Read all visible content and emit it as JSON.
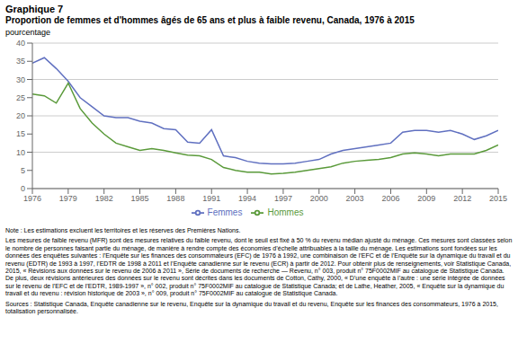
{
  "chart_data": {
    "type": "line",
    "title": "Graphique 7",
    "subtitle": "Proportion de femmes et d'hommes âgés de 65 ans et plus à faible revenu, Canada, 1976 à 2015",
    "y_label": "pourcentage",
    "x": [
      1976,
      1977,
      1978,
      1979,
      1980,
      1981,
      1982,
      1983,
      1984,
      1985,
      1986,
      1987,
      1988,
      1989,
      1990,
      1991,
      1992,
      1993,
      1994,
      1995,
      1996,
      1997,
      1998,
      1999,
      2000,
      2001,
      2002,
      2003,
      2004,
      2005,
      2006,
      2007,
      2008,
      2009,
      2010,
      2011,
      2012,
      2013,
      2014,
      2015
    ],
    "series": [
      {
        "name": "Femmes",
        "color": "#6070c0",
        "values": [
          34.5,
          36.0,
          33.0,
          29.5,
          25.0,
          22.5,
          20.0,
          19.5,
          19.5,
          18.5,
          18.0,
          16.5,
          16.2,
          12.8,
          12.5,
          16.2,
          9.0,
          8.5,
          7.5,
          7.0,
          6.8,
          6.8,
          7.0,
          7.5,
          8.0,
          9.5,
          10.5,
          11.0,
          11.5,
          12.0,
          12.5,
          15.5,
          16.0,
          16.0,
          15.5,
          16.0,
          15.0,
          13.5,
          14.5,
          16.0
        ]
      },
      {
        "name": "Hommes",
        "color": "#5a9a3a",
        "values": [
          26.0,
          25.5,
          23.5,
          29.0,
          22.0,
          18.0,
          15.0,
          12.5,
          11.5,
          10.5,
          11.0,
          10.5,
          9.8,
          9.2,
          9.0,
          8.0,
          5.8,
          5.0,
          4.5,
          4.5,
          4.0,
          4.2,
          4.5,
          5.0,
          5.5,
          6.0,
          7.0,
          7.5,
          7.8,
          8.0,
          8.5,
          9.5,
          9.8,
          9.5,
          9.0,
          9.5,
          9.5,
          9.5,
          10.5,
          12.0
        ]
      }
    ],
    "xlim": [
      1976,
      2015
    ],
    "xticks": [
      1976,
      1979,
      1982,
      1985,
      1988,
      1991,
      1994,
      1997,
      2000,
      2003,
      2006,
      2009,
      2012,
      2015
    ],
    "ylim": [
      0,
      40
    ],
    "yticks": [
      0,
      5,
      10,
      15,
      20,
      25,
      30,
      35,
      40
    ],
    "grid": true,
    "legend": "bottom",
    "annotations": [
      "Note : Les estimations excluent les territoires et les réserves des Premières Nations.",
      "Les mesures de faible revenu (MFR) sont des mesures relatives du faible revenu, dont le seuil est fixé à 50 % du revenu médian ajusté du ménage. Ces mesures sont classées selon le nombre de personnes faisant partie du ménage, de manière à rendre compte des économies d’échelle attribuables à la taille du ménage. Les estimations sont fondées sur les données des enquêtes suivantes : l’Enquête sur les finances des consommateurs (EFC) de 1976 à 1992, une combinaison de l’EFC et de l’Enquête sur la dynamique du travail et du revenu (EDTR) de 1993 à 1997, l’EDTR de 1998 à 2011 et l’Enquête canadienne sur le revenu (ECR) à partir de 2012. Pour obtenir plus de renseignements, voir Statistique Canada, 2015, « Révisions aux données sur le revenu de 2006 à 2011 », Série de documents de recherche — Revenu, n° 003, produit n° 75F0002MIF au catalogue de Statistique Canada. De plus, deux révisions antérieures des données sur le revenu sont décrites dans les documents de Cotton, Cathy, 2000, « D’une enquête à l’autre : une série intégrée de données sur le revenu de l’EFC et de l’EDTR, 1989-1997 », n° 002, produit n° 75F0002MIF au catalogue de Statistique Canada; et de Lathe, Heather, 2005, « Enquête sur la dynamique du travail et du revenu : révision historique de 2003 », n° 009, produit n° 75F0002MIF au catalogue de Statistique Canada.",
      "Sources : Statistique Canada, Enquête canadienne sur le revenu, Enquête sur la dynamique du travail et du revenu, Enquête sur les finances des consommateurs, 1976 à 2015, totalisation personnalisée."
    ]
  }
}
